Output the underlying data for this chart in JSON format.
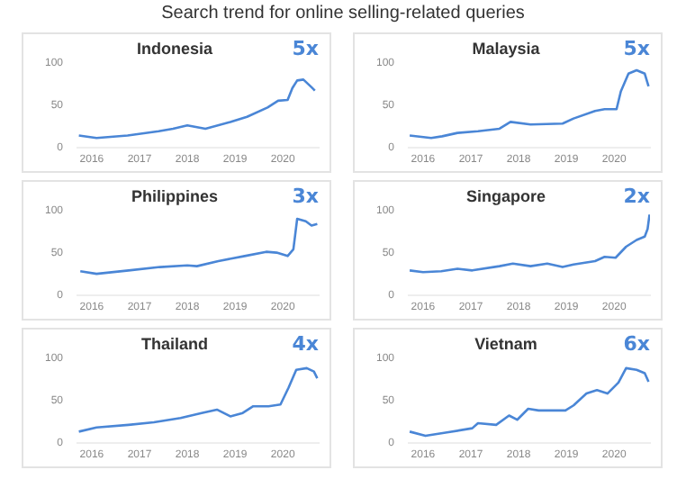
{
  "chart_data": [
    {
      "type": "other",
      "title": "Search trend for online selling-related queries"
    },
    {
      "type": "line",
      "title": "Indonesia",
      "annotations": [
        "5x"
      ],
      "xlim": [
        2015.7,
        2020.75
      ],
      "xticks": [
        2016,
        2017,
        2018,
        2019,
        2020
      ],
      "ylim": [
        0,
        100
      ],
      "yticks": [
        0,
        50,
        100
      ],
      "grid": false,
      "legend": false,
      "marker": "none",
      "series": [
        {
          "color": "#4a86d6",
          "x": [
            2015.73,
            2016.1,
            2016.75,
            2017.4,
            2017.7,
            2018.0,
            2018.38,
            2018.9,
            2019.25,
            2019.68,
            2019.9,
            2020.1,
            2020.2,
            2020.3,
            2020.43,
            2020.6,
            2020.67
          ],
          "values": [
            14,
            11,
            14,
            19,
            22,
            26,
            22,
            30,
            36,
            47,
            55,
            56,
            70,
            79,
            80,
            71,
            67
          ]
        }
      ]
    },
    {
      "type": "line",
      "title": "Malaysia",
      "annotations": [
        "5x"
      ],
      "xlim": [
        2015.7,
        2020.75
      ],
      "xticks": [
        2016,
        2017,
        2018,
        2019,
        2020
      ],
      "ylim": [
        0,
        100
      ],
      "yticks": [
        0,
        50,
        100
      ],
      "grid": false,
      "legend": false,
      "marker": "none",
      "series": [
        {
          "color": "#4a86d6",
          "x": [
            2015.72,
            2016.17,
            2016.4,
            2016.72,
            2017.15,
            2017.6,
            2017.83,
            2018.25,
            2018.92,
            2019.15,
            2019.6,
            2019.8,
            2020.05,
            2020.14,
            2020.3,
            2020.47,
            2020.64,
            2020.72
          ],
          "values": [
            14,
            11,
            13,
            17,
            19,
            22,
            30,
            27,
            28,
            34,
            43,
            45,
            45,
            66,
            87,
            91,
            87,
            72
          ]
        }
      ]
    },
    {
      "type": "line",
      "title": "Philippines",
      "annotations": [
        "3x"
      ],
      "xlim": [
        2015.7,
        2020.75
      ],
      "xticks": [
        2016,
        2017,
        2018,
        2019,
        2020
      ],
      "ylim": [
        0,
        100
      ],
      "yticks": [
        0,
        50,
        100
      ],
      "grid": false,
      "legend": false,
      "marker": "none",
      "series": [
        {
          "color": "#4a86d6",
          "x": [
            2015.76,
            2016.1,
            2016.77,
            2017.43,
            2018.0,
            2018.2,
            2018.65,
            2019.2,
            2019.65,
            2019.87,
            2020.1,
            2020.22,
            2020.3,
            2020.48,
            2020.6,
            2020.72
          ],
          "values": [
            28,
            25,
            29,
            33,
            35,
            34,
            40,
            46,
            51,
            50,
            46,
            54,
            90,
            87,
            82,
            84
          ]
        }
      ]
    },
    {
      "type": "line",
      "title": "Singapore",
      "annotations": [
        "2x"
      ],
      "xlim": [
        2015.7,
        2020.75
      ],
      "xticks": [
        2016,
        2017,
        2018,
        2019,
        2020
      ],
      "ylim": [
        0,
        100
      ],
      "yticks": [
        0,
        50,
        100
      ],
      "grid": false,
      "legend": false,
      "marker": "none",
      "series": [
        {
          "color": "#4a86d6",
          "x": [
            2015.72,
            2016.0,
            2016.38,
            2016.72,
            2017.03,
            2017.6,
            2017.88,
            2018.25,
            2018.6,
            2018.92,
            2019.15,
            2019.6,
            2019.8,
            2020.03,
            2020.25,
            2020.47,
            2020.64,
            2020.7,
            2020.74
          ],
          "values": [
            29,
            27,
            28,
            31,
            29,
            34,
            37,
            34,
            37,
            33,
            36,
            40,
            45,
            44,
            57,
            65,
            69,
            78,
            95
          ]
        }
      ]
    },
    {
      "type": "line",
      "title": "Thailand",
      "annotations": [
        "4x"
      ],
      "xlim": [
        2015.7,
        2020.75
      ],
      "xticks": [
        2016,
        2017,
        2018,
        2019,
        2020
      ],
      "ylim": [
        0,
        100
      ],
      "yticks": [
        0,
        50,
        100
      ],
      "grid": false,
      "legend": false,
      "marker": "none",
      "series": [
        {
          "color": "#4a86d6",
          "x": [
            2015.73,
            2016.1,
            2016.77,
            2017.3,
            2017.86,
            2018.3,
            2018.62,
            2018.9,
            2019.16,
            2019.38,
            2019.7,
            2019.95,
            2020.12,
            2020.28,
            2020.5,
            2020.65,
            2020.72
          ],
          "values": [
            13,
            18,
            21,
            24,
            29,
            35,
            39,
            31,
            35,
            43,
            43,
            45,
            65,
            86,
            88,
            84,
            76
          ]
        }
      ]
    },
    {
      "type": "line",
      "title": "Vietnam",
      "annotations": [
        "6x"
      ],
      "xlim": [
        2015.7,
        2020.75
      ],
      "xticks": [
        2016,
        2017,
        2018,
        2019,
        2020
      ],
      "ylim": [
        0,
        100
      ],
      "yticks": [
        0,
        50,
        100
      ],
      "grid": false,
      "legend": false,
      "marker": "none",
      "series": [
        {
          "color": "#4a86d6",
          "x": [
            2015.72,
            2016.05,
            2016.5,
            2017.03,
            2017.15,
            2017.53,
            2017.8,
            2017.97,
            2018.2,
            2018.42,
            2018.98,
            2019.15,
            2019.42,
            2019.64,
            2019.86,
            2020.09,
            2020.25,
            2020.47,
            2020.64,
            2020.72
          ],
          "values": [
            13,
            8,
            12,
            17,
            23,
            21,
            32,
            27,
            40,
            38,
            38,
            44,
            58,
            62,
            58,
            71,
            88,
            86,
            82,
            72
          ]
        }
      ]
    }
  ]
}
